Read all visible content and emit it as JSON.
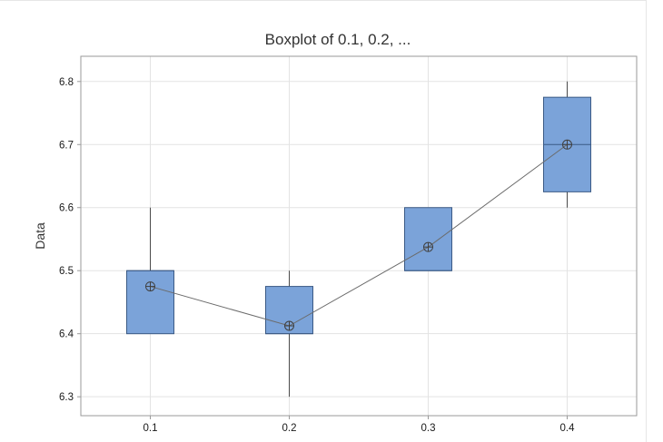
{
  "chart_data": {
    "type": "boxplot",
    "title": "Boxplot of 0.1, 0.2, ...",
    "xlabel": "",
    "ylabel": "Data",
    "categories": [
      "0.1",
      "0.2",
      "0.3",
      "0.4"
    ],
    "yticks": [
      "6.3",
      "6.4",
      "6.5",
      "6.6",
      "6.7",
      "6.8"
    ],
    "ylim": [
      6.27,
      6.84
    ],
    "grid": true,
    "boxes": [
      {
        "category": "0.1",
        "min": 6.4,
        "q1": 6.4,
        "median": 6.5,
        "q3": 6.5,
        "max": 6.6,
        "mean": 6.475
      },
      {
        "category": "0.2",
        "min": 6.3,
        "q1": 6.4,
        "median": 6.4,
        "q3": 6.475,
        "max": 6.5,
        "mean": 6.4125
      },
      {
        "category": "0.3",
        "min": 6.5,
        "q1": 6.5,
        "median": 6.5,
        "q3": 6.6,
        "max": 6.6,
        "mean": 6.5375
      },
      {
        "category": "0.4",
        "min": 6.6,
        "q1": 6.625,
        "median": 6.7,
        "q3": 6.775,
        "max": 6.8,
        "mean": 6.7
      }
    ],
    "mean_connect_line": true,
    "colors": {
      "box_fill": "#7ba3d9",
      "box_stroke": "#3b5a85",
      "whisker": "#4a4a4a",
      "mean_line": "#6b6b6b",
      "grid": "#e3e3e3",
      "plot_border": "#9a9a9a"
    }
  }
}
